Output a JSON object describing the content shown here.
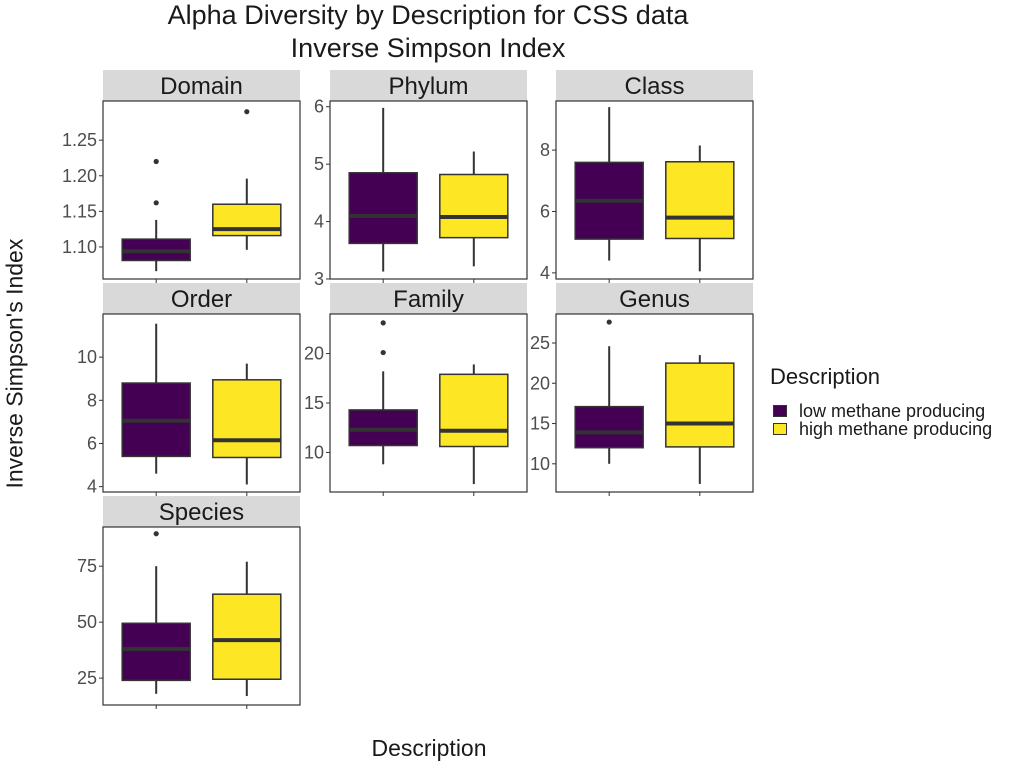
{
  "titles": {
    "line1": "Alpha Diversity by Description for CSS data",
    "line2": "Inverse Simpson Index"
  },
  "chart_data": {
    "type": "boxplot",
    "xlabel": "Description",
    "ylabel": "Inverse Simpson's Index",
    "legend": {
      "title": "Description",
      "position": "right",
      "items": [
        {
          "label": "low methane producing",
          "color": "#440154"
        },
        {
          "label": "high methane producing",
          "color": "#FDE725"
        }
      ]
    },
    "categories": [
      "low methane producing",
      "high methane producing"
    ],
    "panels": [
      {
        "name": "Domain",
        "ylim": [
          1.055,
          1.305
        ],
        "yticks": [
          1.1,
          1.15,
          1.2,
          1.25
        ],
        "tick_labels": [
          "1.10",
          "1.15",
          "1.20",
          "1.25"
        ],
        "boxes": [
          {
            "min": 1.066,
            "q1": 1.081,
            "median": 1.094,
            "q3": 1.111,
            "max": 1.138,
            "outliers": [
              1.162,
              1.22
            ]
          },
          {
            "min": 1.096,
            "q1": 1.116,
            "median": 1.125,
            "q3": 1.16,
            "max": 1.196,
            "outliers": [
              1.29
            ]
          }
        ]
      },
      {
        "name": "Phylum",
        "ylim": [
          3.0,
          6.1
        ],
        "yticks": [
          3,
          4,
          5,
          6
        ],
        "tick_labels": [
          "3",
          "4",
          "5",
          "6"
        ],
        "boxes": [
          {
            "min": 3.13,
            "q1": 3.62,
            "median": 4.1,
            "q3": 4.85,
            "max": 5.98,
            "outliers": []
          },
          {
            "min": 3.22,
            "q1": 3.72,
            "median": 4.08,
            "q3": 4.82,
            "max": 5.22,
            "outliers": []
          }
        ]
      },
      {
        "name": "Class",
        "ylim": [
          3.8,
          9.6
        ],
        "yticks": [
          4,
          6,
          8
        ],
        "tick_labels": [
          "4",
          "6",
          "8"
        ],
        "boxes": [
          {
            "min": 4.4,
            "q1": 5.1,
            "median": 6.35,
            "q3": 7.6,
            "max": 9.4,
            "outliers": []
          },
          {
            "min": 4.05,
            "q1": 5.12,
            "median": 5.8,
            "q3": 7.62,
            "max": 8.15,
            "outliers": []
          }
        ]
      },
      {
        "name": "Order",
        "ylim": [
          3.75,
          12.0
        ],
        "yticks": [
          4,
          6,
          8,
          10
        ],
        "tick_labels": [
          "4",
          "6",
          "8",
          "10"
        ],
        "boxes": [
          {
            "min": 4.6,
            "q1": 5.4,
            "median": 7.05,
            "q3": 8.8,
            "max": 11.55,
            "outliers": []
          },
          {
            "min": 4.1,
            "q1": 5.35,
            "median": 6.15,
            "q3": 8.95,
            "max": 9.7,
            "outliers": []
          }
        ]
      },
      {
        "name": "Family",
        "ylim": [
          6.0,
          24.0
        ],
        "yticks": [
          10,
          15,
          20
        ],
        "tick_labels": [
          "10",
          "15",
          "20"
        ],
        "boxes": [
          {
            "min": 8.8,
            "q1": 10.7,
            "median": 12.3,
            "q3": 14.3,
            "max": 18.2,
            "outliers": [
              20.1,
              23.1
            ]
          },
          {
            "min": 6.8,
            "q1": 10.6,
            "median": 12.2,
            "q3": 17.9,
            "max": 18.9,
            "outliers": []
          }
        ]
      },
      {
        "name": "Genus",
        "ylim": [
          6.5,
          28.6
        ],
        "yticks": [
          10,
          15,
          20,
          25
        ],
        "tick_labels": [
          "10",
          "15",
          "20",
          "25"
        ],
        "boxes": [
          {
            "min": 10.0,
            "q1": 12.0,
            "median": 13.9,
            "q3": 17.1,
            "max": 24.6,
            "outliers": [
              27.6
            ]
          },
          {
            "min": 7.5,
            "q1": 12.1,
            "median": 15.0,
            "q3": 22.5,
            "max": 23.5,
            "outliers": []
          }
        ]
      },
      {
        "name": "Species",
        "ylim": [
          13.0,
          92.5
        ],
        "yticks": [
          25,
          50,
          75
        ],
        "tick_labels": [
          "25",
          "50",
          "75"
        ],
        "boxes": [
          {
            "min": 18.0,
            "q1": 24.0,
            "median": 38.0,
            "q3": 49.5,
            "max": 75.0,
            "outliers": [
              89.5
            ]
          },
          {
            "min": 17.0,
            "q1": 24.5,
            "median": 42.0,
            "q3": 62.5,
            "max": 77.0,
            "outliers": []
          }
        ]
      }
    ],
    "grid": false
  }
}
